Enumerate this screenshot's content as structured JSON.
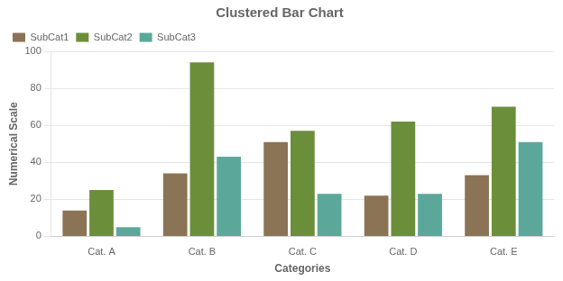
{
  "chart_data": {
    "type": "bar",
    "title": "Clustered Bar Chart",
    "xlabel": "Categories",
    "ylabel": "Numerical Scale",
    "categories": [
      "Cat. A",
      "Cat. B",
      "Cat. C",
      "Cat. D",
      "Cat. E"
    ],
    "series": [
      {
        "name": "SubCat1",
        "color": "#8B7355",
        "values": [
          14,
          34,
          51,
          22,
          33
        ]
      },
      {
        "name": "SubCat2",
        "color": "#6B8E3B",
        "values": [
          25,
          94,
          57,
          62,
          70
        ]
      },
      {
        "name": "SubCat3",
        "color": "#5BA89A",
        "values": [
          5,
          43,
          23,
          23,
          51
        ]
      }
    ],
    "ylim": [
      0,
      100
    ],
    "yticks": [
      0,
      20,
      40,
      60,
      80,
      100
    ],
    "grid": "y",
    "legend": "upper left"
  }
}
